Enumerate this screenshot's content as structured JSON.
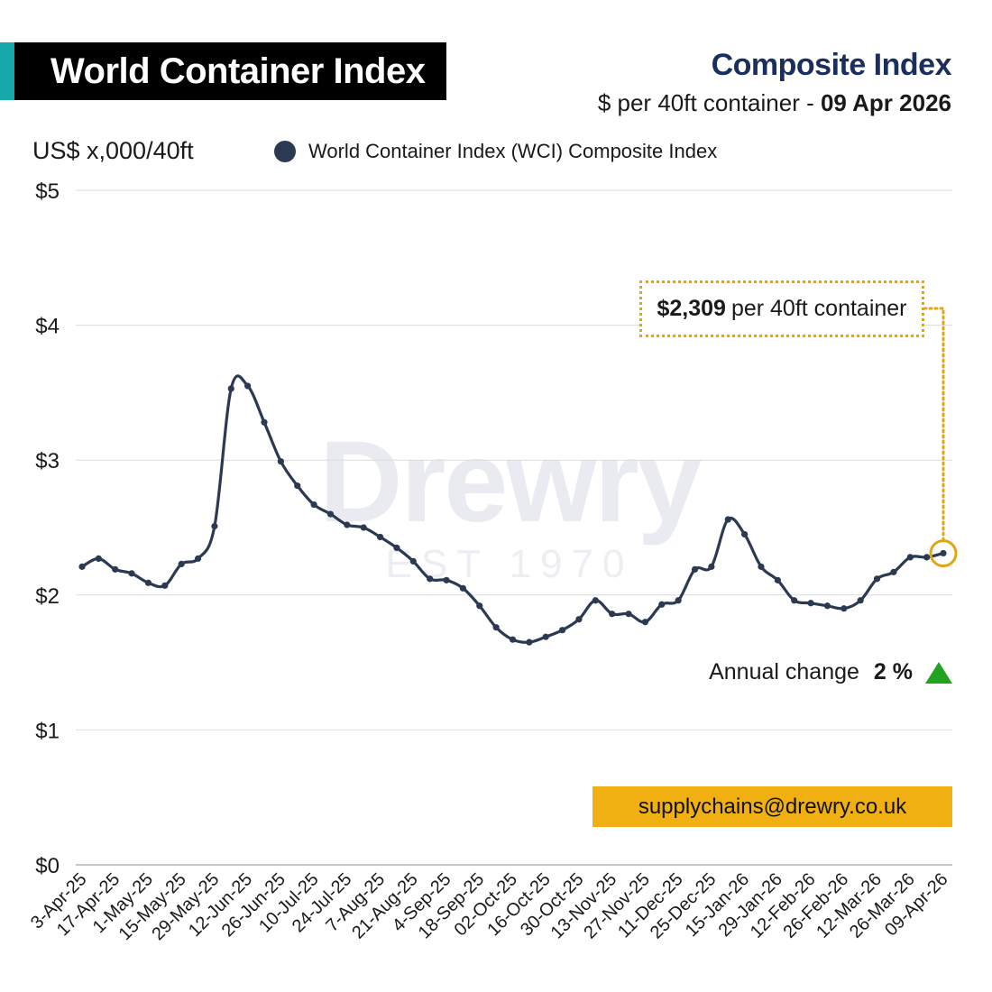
{
  "header": {
    "title": "World Container Index",
    "subtitle": "Composite Index",
    "subline_prefix": "$ per 40ft container - ",
    "subline_date": "09 Apr 2026"
  },
  "watermark": {
    "word": "Drewry",
    "est": "EST 1970"
  },
  "callout": {
    "value": "$2,309",
    "text": "per 40ft container"
  },
  "annual_change": {
    "label": "Annual change",
    "value": "2 %",
    "direction": "up",
    "color": "#21a321"
  },
  "contact": {
    "email": "supplychains@drewry.co.uk"
  },
  "colors": {
    "title_bg": "#000000",
    "accent": "#17a8a9",
    "subtitle": "#1b2f5f",
    "line": "#2b3a52",
    "highlight": "#e0a615",
    "email_bg": "#f0b012"
  },
  "chart_data": {
    "type": "line",
    "ylabel": "US$ x,000/40ft",
    "ylim": [
      0,
      5
    ],
    "yticks": [
      "$0",
      "$1",
      "$2",
      "$3",
      "$4",
      "$5"
    ],
    "grid": true,
    "legend_position": "top",
    "x_tick_labels": [
      "3-Apr-25",
      "17-Apr-25",
      "1-May-25",
      "15-May-25",
      "29-May-25",
      "12-Jun-25",
      "26-Jun-25",
      "10-Jul-25",
      "24-Jul-25",
      "7-Aug-25",
      "21-Aug-25",
      "4-Sep-25",
      "18-Sep-25",
      "02-Oct-25",
      "16-Oct-25",
      "30-Oct-25",
      "13-Nov-25",
      "27-Nov-25",
      "11-Dec-25",
      "25-Dec-25",
      "15-Jan-26",
      "29-Jan-26",
      "12-Feb-26",
      "26-Feb-26",
      "12-Mar-26",
      "26-Mar-26",
      "09-Apr-26"
    ],
    "series": [
      {
        "name": "World Container Index (WCI) Composite Index",
        "color": "#2b3a52",
        "values": [
          2.21,
          2.27,
          2.19,
          2.16,
          2.09,
          2.07,
          2.23,
          2.27,
          2.51,
          3.53,
          3.55,
          3.28,
          2.99,
          2.81,
          2.67,
          2.6,
          2.52,
          2.5,
          2.43,
          2.35,
          2.25,
          2.12,
          2.11,
          2.05,
          1.92,
          1.76,
          1.67,
          1.65,
          1.69,
          1.74,
          1.82,
          1.96,
          1.86,
          1.86,
          1.8,
          1.93,
          1.96,
          2.19,
          2.21,
          2.56,
          2.45,
          2.21,
          2.11,
          1.96,
          1.94,
          1.92,
          1.9,
          1.96,
          2.12,
          2.17,
          2.28,
          2.28,
          2.31
        ]
      }
    ],
    "highlight": {
      "label": "$2,309 per 40ft container",
      "value": 2.309
    }
  }
}
